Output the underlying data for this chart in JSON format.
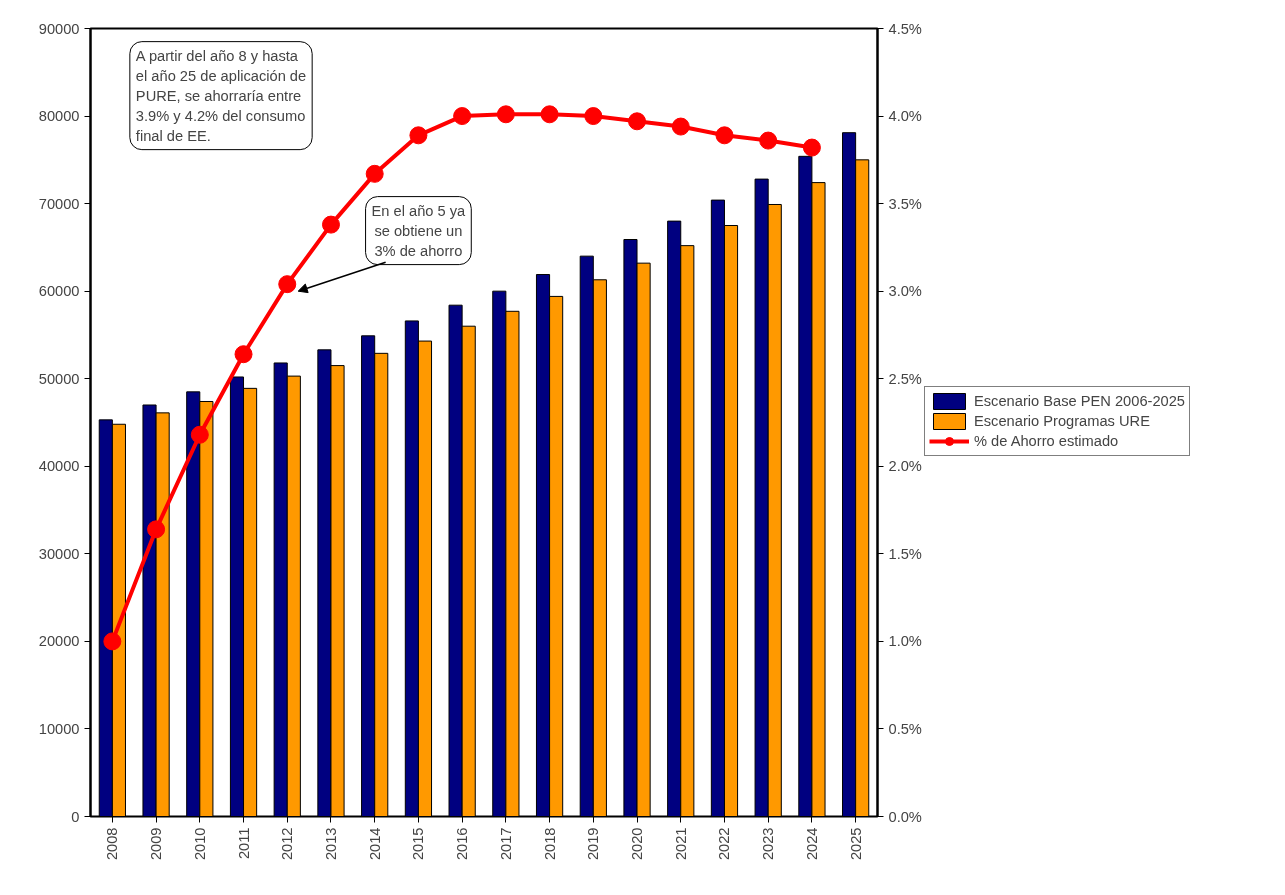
{
  "chart_data": {
    "type": "bar",
    "categories": [
      "2008",
      "2009",
      "2010",
      "2011",
      "2012",
      "2013",
      "2014",
      "2015",
      "2016",
      "2017",
      "2018",
      "2019",
      "2020",
      "2021",
      "2022",
      "2023",
      "2024",
      "2025"
    ],
    "series": [
      {
        "name": "Escenario Base PEN 2006-2025",
        "color": "#000080",
        "values": [
          45300,
          47000,
          48500,
          50200,
          51800,
          53300,
          54900,
          56600,
          58400,
          60000,
          61900,
          64000,
          65900,
          68000,
          70400,
          72800,
          75400,
          78100
        ]
      },
      {
        "name": "Escenario Programas URE",
        "color": "#ff9900",
        "values": [
          44800,
          46100,
          47400,
          48900,
          50300,
          51500,
          52900,
          54300,
          56000,
          57700,
          59400,
          61300,
          63200,
          65200,
          67500,
          69900,
          72400,
          75000
        ]
      },
      {
        "name": "% de Ahorro estimado",
        "type": "line",
        "axis": "y2",
        "color": "#ff0000",
        "marker": "circle",
        "values": [
          1.0,
          1.64,
          2.18,
          2.64,
          3.04,
          3.38,
          3.67,
          3.89,
          4.0,
          4.01,
          4.01,
          4.0,
          3.97,
          3.94,
          3.89,
          3.86,
          3.82,
          null
        ]
      }
    ],
    "ylim": [
      0,
      90000
    ],
    "yticks": [
      0,
      10000,
      20000,
      30000,
      40000,
      50000,
      60000,
      70000,
      80000,
      90000
    ],
    "y2lim": [
      0,
      4.5
    ],
    "y2ticks": [
      {
        "value": 0,
        "label": "0.0%"
      },
      {
        "value": 0.5,
        "label": "0.5%"
      },
      {
        "value": 1,
        "label": "1.0%"
      },
      {
        "value": 1.5,
        "label": "1.5%"
      },
      {
        "value": 2,
        "label": "2.0%"
      },
      {
        "value": 2.5,
        "label": "2.5%"
      },
      {
        "value": 3,
        "label": "3.0%"
      },
      {
        "value": 3.5,
        "label": "3.5%"
      },
      {
        "value": 4,
        "label": "4.0%"
      },
      {
        "value": 4.5,
        "label": "4.5%"
      }
    ],
    "grid": false,
    "legend": "right",
    "line_style": "solid",
    "annotations": [
      "A partir del año 8 y hasta\nel año 25 de aplicación de\nPURE, se ahorraría entre\n3.9% y 4.2% del consumo\nfinal de EE.",
      "En el año 5 ya\nse obtiene un\n3% de ahorro"
    ]
  }
}
